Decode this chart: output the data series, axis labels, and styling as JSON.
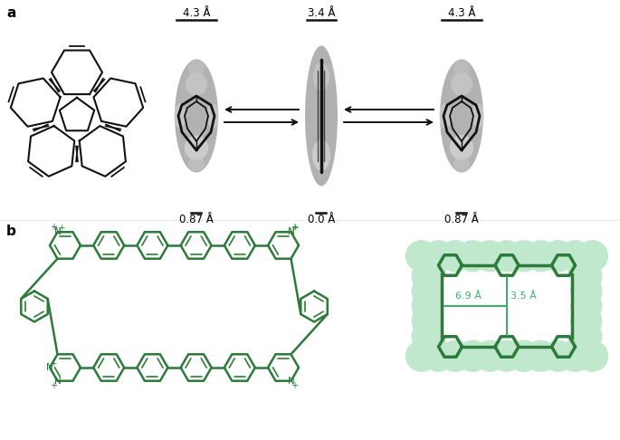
{
  "green": "#2d7a3a",
  "green_light": "#c5e8cb",
  "dim_green": "#3ab06a",
  "black": "#111111",
  "white": "#ffffff",
  "gray_blob": "#a8a8a8",
  "gray_light": "#d0d0d0",
  "width_labels": [
    "4.3 Å",
    "3.4 Å",
    "4.3 Å"
  ],
  "depth_labels": [
    "0.87 Å",
    "0.0 Å",
    "0.87 Å"
  ]
}
